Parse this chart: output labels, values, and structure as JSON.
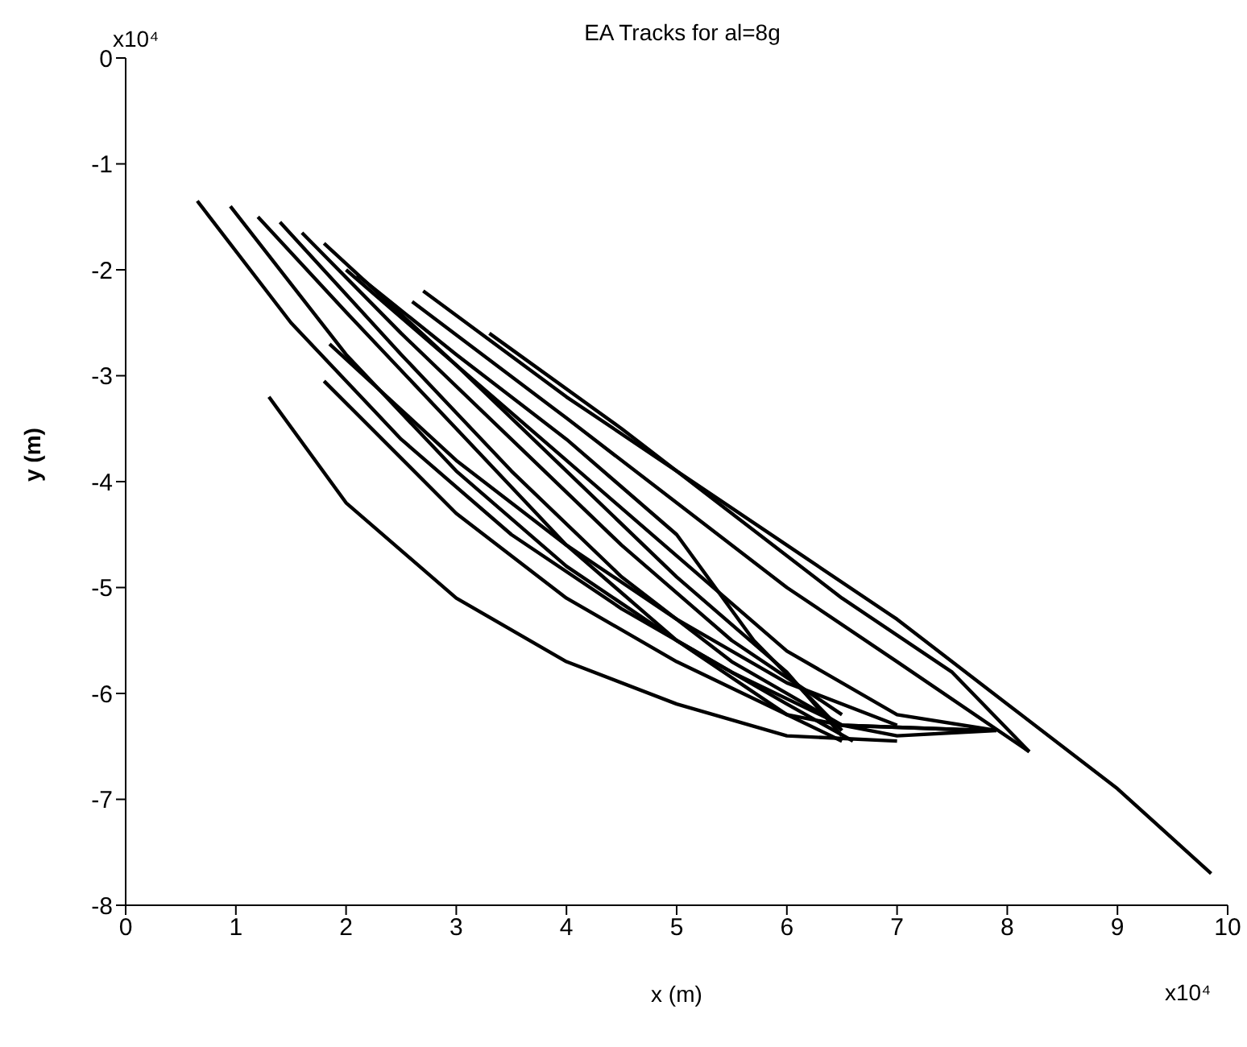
{
  "chart_data": {
    "type": "line",
    "title": "EA Tracks for al=8g",
    "xlabel": "x (m)",
    "ylabel": "y (m)",
    "annotations": [
      "x10⁴",
      "x10⁴"
    ],
    "xlim": [
      0,
      10
    ],
    "xticks": [
      0,
      1,
      2,
      3,
      4,
      5,
      6,
      7,
      8,
      9,
      10
    ],
    "ylim": [
      -8,
      0
    ],
    "yticks": [
      -8,
      -7,
      -6,
      -5,
      -4,
      -3,
      -2,
      -1,
      0
    ],
    "grid": false,
    "legend": false,
    "series": [
      {
        "color": "#000000",
        "x": [
          0.65,
          1.5,
          2.5,
          3.5,
          4.5,
          5.5,
          6.5,
          7.8
        ],
        "values": [
          -1.35,
          -2.5,
          -3.6,
          -4.5,
          -5.2,
          -5.8,
          -6.3,
          -6.35
        ]
      },
      {
        "color": "#000000",
        "x": [
          0.95,
          2,
          3,
          4,
          5,
          6,
          6.6
        ],
        "values": [
          -1.4,
          -2.8,
          -3.9,
          -4.8,
          -5.5,
          -6.1,
          -6.45
        ]
      },
      {
        "color": "#000000",
        "x": [
          1.2,
          2,
          3,
          4,
          5,
          6,
          6.5
        ],
        "values": [
          -1.5,
          -2.4,
          -3.5,
          -4.6,
          -5.5,
          -6.2,
          -6.45
        ]
      },
      {
        "color": "#000000",
        "x": [
          1.4,
          2.5,
          3.5,
          4.5,
          5.5,
          6.5,
          7.8
        ],
        "values": [
          -1.55,
          -2.8,
          -3.9,
          -4.9,
          -5.7,
          -6.3,
          -6.35
        ]
      },
      {
        "color": "#000000",
        "x": [
          1.6,
          2.5,
          3.5,
          4.5,
          5.5,
          6.5
        ],
        "values": [
          -1.65,
          -2.6,
          -3.6,
          -4.6,
          -5.5,
          -6.2
        ]
      },
      {
        "color": "#000000",
        "x": [
          1.8,
          3,
          4,
          5,
          6,
          6.5
        ],
        "values": [
          -1.75,
          -2.9,
          -3.9,
          -4.9,
          -5.8,
          -6.4
        ]
      },
      {
        "color": "#000000",
        "x": [
          2,
          3,
          4,
          5,
          6,
          7,
          7.9
        ],
        "values": [
          -2,
          -2.9,
          -3.8,
          -4.7,
          -5.6,
          -6.2,
          -6.35
        ]
      },
      {
        "color": "#000000",
        "x": [
          2.1,
          3,
          4,
          5,
          5.7,
          6.5
        ],
        "values": [
          -2.05,
          -2.8,
          -3.6,
          -4.5,
          -5.5,
          -6.35
        ]
      },
      {
        "color": "#000000",
        "x": [
          2.6,
          4,
          5,
          6,
          7,
          8.2
        ],
        "values": [
          -2.3,
          -3.4,
          -4.2,
          -5,
          -5.7,
          -6.55
        ]
      },
      {
        "color": "#000000",
        "x": [
          2.7,
          4,
          5,
          6,
          7,
          8,
          9,
          9.85
        ],
        "values": [
          -2.2,
          -3.2,
          -3.9,
          -4.6,
          -5.3,
          -6.1,
          -6.9,
          -7.7
        ]
      },
      {
        "color": "#000000",
        "x": [
          3.3,
          4.5,
          5.5,
          6.5,
          7.5,
          8.2
        ],
        "values": [
          -2.6,
          -3.5,
          -4.3,
          -5.1,
          -5.8,
          -6.55
        ]
      },
      {
        "color": "#000000",
        "x": [
          1.3,
          2,
          3,
          4,
          5,
          6,
          7
        ],
        "values": [
          -3.2,
          -4.2,
          -5.1,
          -5.7,
          -6.1,
          -6.4,
          -6.45
        ]
      },
      {
        "color": "#000000",
        "x": [
          1.8,
          3,
          4,
          5,
          6,
          7,
          7.9
        ],
        "values": [
          -3.05,
          -4.3,
          -5.1,
          -5.7,
          -6.2,
          -6.4,
          -6.35
        ]
      },
      {
        "color": "#000000",
        "x": [
          1.85,
          3,
          4,
          5,
          6,
          7
        ],
        "values": [
          -2.7,
          -3.8,
          -4.6,
          -5.3,
          -5.9,
          -6.3
        ]
      }
    ]
  }
}
